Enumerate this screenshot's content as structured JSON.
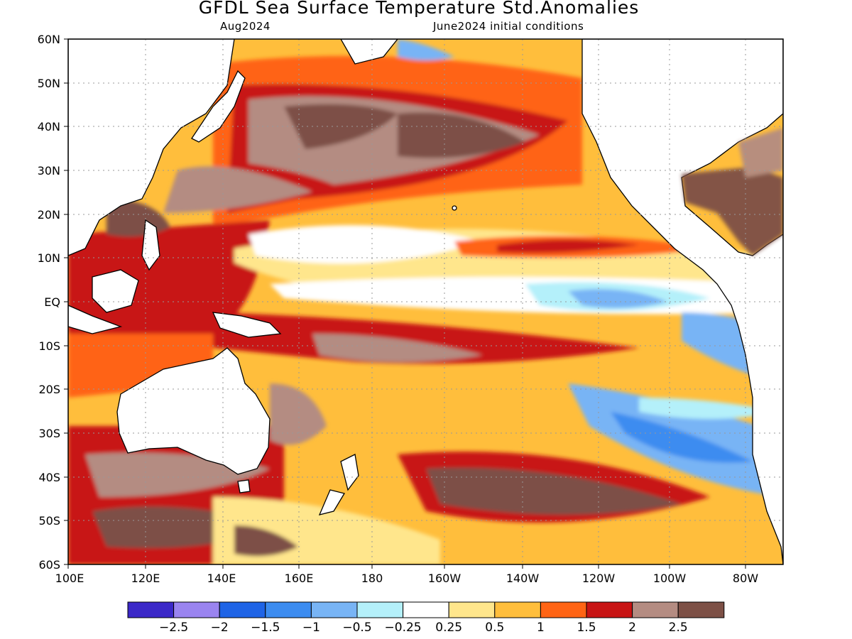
{
  "header": {
    "title": "GFDL Sea Surface Temperature Std.Anomalies",
    "target_month": "Aug2024",
    "initial_conditions": "June2024 initial conditions"
  },
  "axes": {
    "lat_labels": [
      "60N",
      "50N",
      "40N",
      "30N",
      "20N",
      "10N",
      "EQ",
      "10S",
      "20S",
      "30S",
      "40S",
      "50S",
      "60S"
    ],
    "lon_labels": [
      "100E",
      "120E",
      "140E",
      "160E",
      "180",
      "160W",
      "140W",
      "120W",
      "100W",
      "80W"
    ]
  },
  "colorbar": {
    "colors": [
      "#3b28c8",
      "#9a84f0",
      "#1f64e6",
      "#3c8cf0",
      "#78b4f5",
      "#b4f0fa",
      "#ffffff",
      "#ffe68c",
      "#ffbe3c",
      "#ff6414",
      "#c81414",
      "#b48c82",
      "#7d5046"
    ],
    "labels": [
      "−2.5",
      "−2",
      "−1.5",
      "−1",
      "−0.5",
      "−0.25",
      "0.25",
      "0.5",
      "1",
      "1.5",
      "2",
      "2.5"
    ]
  },
  "map_colors": {
    "land": "#ffffff",
    "grid": "#999999"
  }
}
